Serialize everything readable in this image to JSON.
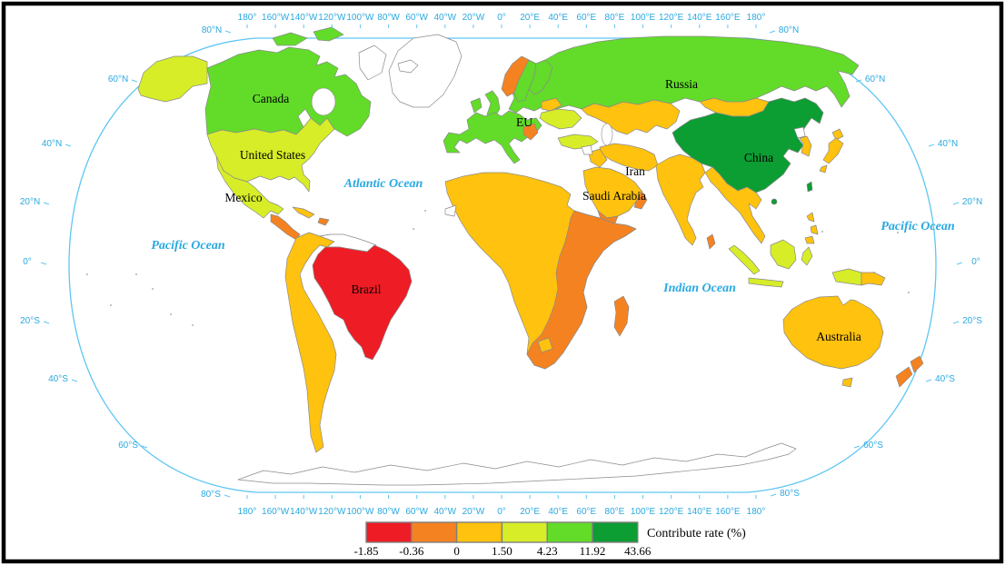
{
  "figure": {
    "type": "choropleth_world_map",
    "projection_note": "world map in oval (Robinson-style) outline with latitude/longitude frame labels"
  },
  "map": {
    "class_colors": {
      "red": "#EE1C25",
      "orange": "#F58220",
      "gold": "#FFC20E",
      "yellow_green": "#D6ED28",
      "green": "#62DC28",
      "dark_green": "#0C9D33",
      "nodata": "#FFFFFF"
    },
    "graticule": {
      "lon_labels": [
        "180°",
        "160°W",
        "140°W",
        "120°W",
        "100°W",
        "80°W",
        "60°W",
        "40°W",
        "20°W",
        "0°",
        "20°E",
        "40°E",
        "60°E",
        "80°E",
        "100°E",
        "120°E",
        "140°E",
        "160°E",
        "180°"
      ],
      "lat_labels": [
        "80°N",
        "60°N",
        "40°N",
        "20°N",
        "0°",
        "20°S",
        "40°S",
        "60°S",
        "80°S"
      ]
    },
    "ocean_labels": [
      "Atlantic Ocean",
      "Pacific Ocean",
      "Pacific Ocean",
      "Indian Ocean"
    ],
    "countries": [
      {
        "label": "Canada",
        "color_class": "green",
        "legend_range": "4.23 to 11.92"
      },
      {
        "label": "United States",
        "color_class": "yellow_green",
        "legend_range": "1.50 to 4.23"
      },
      {
        "label": "Mexico",
        "color_class": "yellow_green",
        "legend_range": "1.50 to 4.23"
      },
      {
        "label": "Brazil",
        "color_class": "red",
        "legend_range": "-1.85 to -0.36"
      },
      {
        "label": "Russia",
        "color_class": "green",
        "legend_range": "4.23 to 11.92"
      },
      {
        "label": "EU",
        "color_class": "green",
        "legend_range": "4.23 to 11.92"
      },
      {
        "label": "China",
        "color_class": "dark_green",
        "legend_range": "11.92 to 43.66"
      },
      {
        "label": "Iran",
        "color_class": "gold",
        "legend_range": "0 to 1.50"
      },
      {
        "label": "Saudi Arabia",
        "color_class": "gold",
        "legend_range": "0 to 1.50"
      },
      {
        "label": "Australia",
        "color_class": "gold",
        "legend_range": "0 to 1.50"
      }
    ]
  },
  "legend": {
    "title": "Contribute rate (%)",
    "breaks": [
      "-1.85",
      "-0.36",
      "0",
      "1.50",
      "4.23",
      "11.92",
      "43.66"
    ],
    "box_classes": [
      "red",
      "orange",
      "gold",
      "yellow_green",
      "green",
      "dark_green"
    ]
  }
}
